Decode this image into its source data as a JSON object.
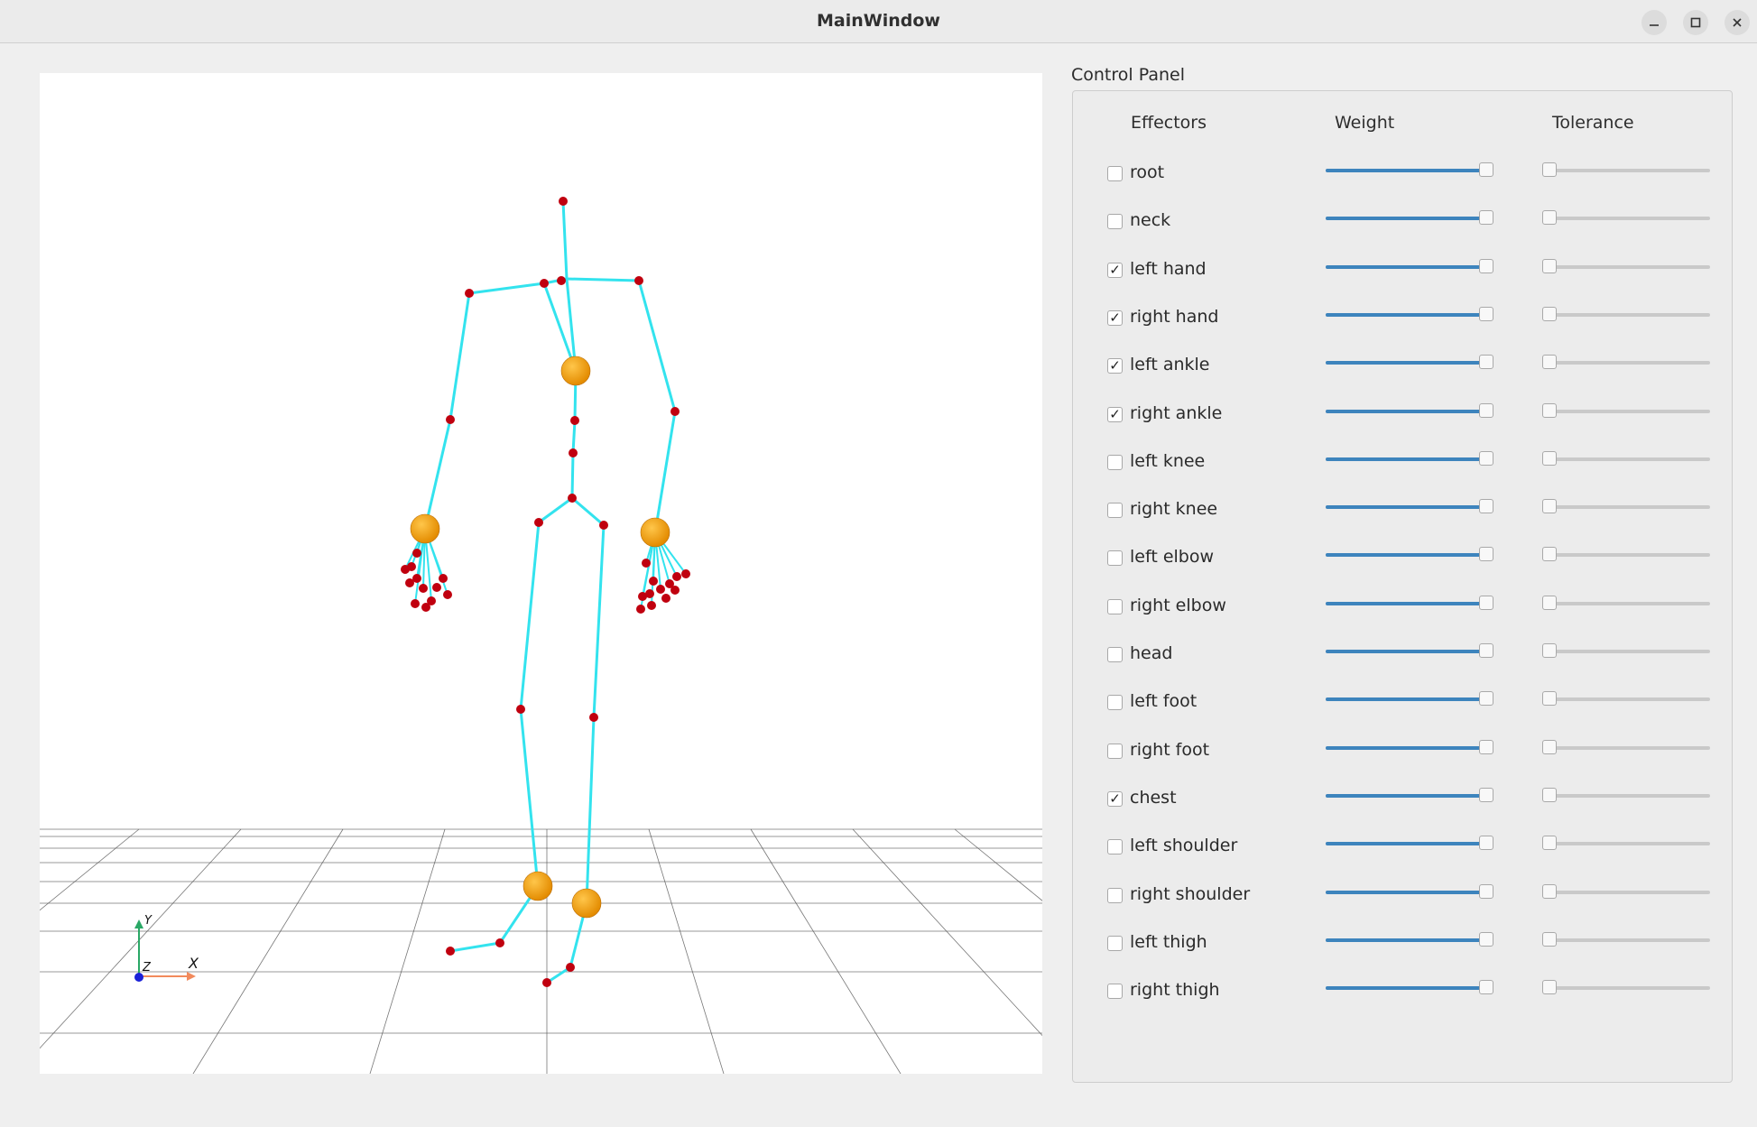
{
  "window": {
    "title": "MainWindow"
  },
  "panel": {
    "title": "Control Panel",
    "headers": {
      "effectors": "Effectors",
      "weight": "Weight",
      "tolerance": "Tolerance"
    },
    "effectors": [
      {
        "label": "root",
        "checked": false,
        "weight": 1.0,
        "tolerance": 0.0
      },
      {
        "label": "neck",
        "checked": false,
        "weight": 1.0,
        "tolerance": 0.0
      },
      {
        "label": "left hand",
        "checked": true,
        "weight": 1.0,
        "tolerance": 0.0
      },
      {
        "label": "right hand",
        "checked": true,
        "weight": 1.0,
        "tolerance": 0.0
      },
      {
        "label": "left ankle",
        "checked": true,
        "weight": 1.0,
        "tolerance": 0.0
      },
      {
        "label": "right ankle",
        "checked": true,
        "weight": 1.0,
        "tolerance": 0.0
      },
      {
        "label": "left knee",
        "checked": false,
        "weight": 1.0,
        "tolerance": 0.0
      },
      {
        "label": "right knee",
        "checked": false,
        "weight": 1.0,
        "tolerance": 0.0
      },
      {
        "label": "left elbow",
        "checked": false,
        "weight": 1.0,
        "tolerance": 0.0
      },
      {
        "label": "right elbow",
        "checked": false,
        "weight": 1.0,
        "tolerance": 0.0
      },
      {
        "label": "head",
        "checked": false,
        "weight": 1.0,
        "tolerance": 0.0
      },
      {
        "label": "left foot",
        "checked": false,
        "weight": 1.0,
        "tolerance": 0.0
      },
      {
        "label": "right foot",
        "checked": false,
        "weight": 1.0,
        "tolerance": 0.0
      },
      {
        "label": "chest",
        "checked": true,
        "weight": 1.0,
        "tolerance": 0.0
      },
      {
        "label": "left shoulder",
        "checked": false,
        "weight": 1.0,
        "tolerance": 0.0
      },
      {
        "label": "right shoulder",
        "checked": false,
        "weight": 1.0,
        "tolerance": 0.0
      },
      {
        "label": "left thigh",
        "checked": false,
        "weight": 1.0,
        "tolerance": 0.0
      },
      {
        "label": "right thigh",
        "checked": false,
        "weight": 1.0,
        "tolerance": 0.0
      }
    ]
  },
  "viewport": {
    "axis_labels": {
      "x": "X",
      "y": "Y",
      "z": "Z"
    },
    "colors": {
      "bone": "#33e3ee",
      "joint": "#c0000f",
      "effector": "#e38b00",
      "grid": "#555555",
      "x_axis": "#f28a5c",
      "y_axis": "#2aa866",
      "z_axis": "#1a22d8"
    }
  },
  "icons": {
    "minimize": "minimize-icon",
    "maximize": "maximize-icon",
    "close": "close-icon"
  },
  "colors": {
    "accent": "#3d84bd"
  }
}
